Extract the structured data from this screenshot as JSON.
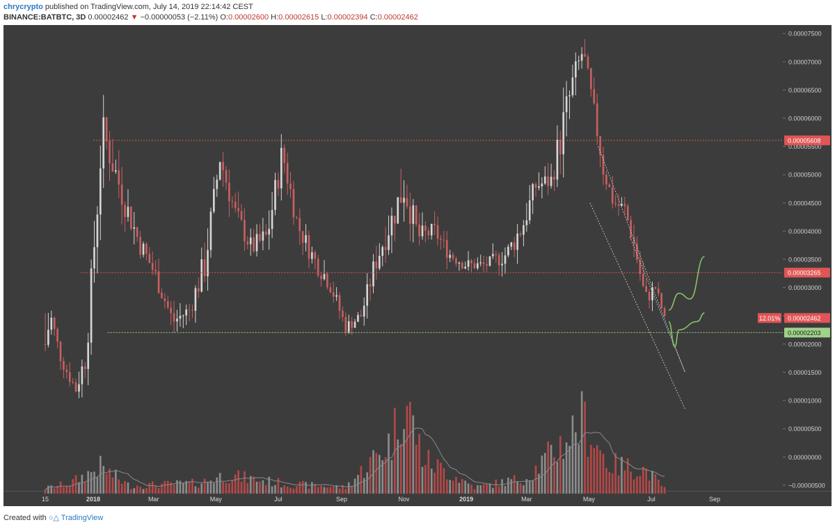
{
  "header": {
    "author": "chrycrypto",
    "published_text": "published on TradingView.com, July 14, 2019 22:14:42 CEST",
    "symbol": "BINANCE:BATBTC, 3D",
    "last": "0.00002462",
    "arrow": "▼",
    "change": "−0.00000053 (−2.11%)",
    "o_label": "O:",
    "o_value": "0.00002600",
    "h_label": "H:",
    "h_value": "0.00002615",
    "l_label": "L:",
    "l_value": "0.00002394",
    "c_label": "C:",
    "c_value": "0.00002462"
  },
  "footer": {
    "created_with": "Created with",
    "brand": "TradingView"
  },
  "colors": {
    "background": "#3c3c3c",
    "up": "#d6d6d6",
    "down": "#c96060",
    "resistance": "#e05555",
    "support": "#9fd389",
    "projection": "#86c468",
    "channel": "#bbbbbb",
    "volume_ma": "#8a8a8a"
  },
  "chart_data": {
    "type": "candlestick",
    "y_axis": {
      "range": [
        -6e-06,
        7.65e-05
      ],
      "tick_labels": [
        "0.00007500",
        "0.00007000",
        "0.00006500",
        "0.00006000",
        "0.00005500",
        "0.00005000",
        "0.00004500",
        "0.00004000",
        "0.00003500",
        "0.00003000",
        "0.00002500",
        "0.00002000",
        "0.00001500",
        "0.00001000",
        "0.00000500",
        "0.00000000",
        "−0.00000500"
      ],
      "tick_values": [
        7.5e-05,
        7e-05,
        6.5e-05,
        6e-05,
        5.5e-05,
        5e-05,
        4.5e-05,
        4e-05,
        3.5e-05,
        3e-05,
        2.5e-05,
        2e-05,
        1.5e-05,
        1e-05,
        5e-06,
        0,
        -5e-06
      ]
    },
    "x_axis": {
      "range": [
        "2017-11-15",
        "2019-09-20"
      ],
      "tick_labels": [
        "15",
        "2018",
        "Mar",
        "May",
        "Jul",
        "Sep",
        "Nov",
        "2019",
        "Mar",
        "May",
        "Jul",
        "Sep"
      ],
      "tick_dates": [
        "2017-11-15",
        "2018-01-01",
        "2018-03-01",
        "2018-05-01",
        "2018-07-01",
        "2018-09-01",
        "2018-11-01",
        "2019-01-01",
        "2019-03-01",
        "2019-05-01",
        "2019-07-01",
        "2019-09-01"
      ]
    },
    "price_path": [
      [
        "2017-11-15",
        2e-05,
        4e-05,
        1e-06
      ],
      [
        "2017-11-20",
        2.5e-05,
        3e-05,
        1.7e-05
      ],
      [
        "2017-12-01",
        1.7e-05,
        2e-05,
        1.4e-05
      ],
      [
        "2017-12-15",
        1.2e-05,
        1.8e-05,
        1e-05
      ],
      [
        "2017-12-25",
        1.8e-05,
        3e-05,
        1.5e-05
      ],
      [
        "2018-01-05",
        4.5e-05,
        6e-05,
        3.5e-05
      ],
      [
        "2018-01-10",
        5.8e-05,
        6.65e-05,
        4.8e-05
      ],
      [
        "2018-01-20",
        5.2e-05,
        6e-05,
        4.2e-05
      ],
      [
        "2018-02-01",
        4.5e-05,
        5.3e-05,
        3.8e-05
      ],
      [
        "2018-02-15",
        3.8e-05,
        4.5e-05,
        3.3e-05
      ],
      [
        "2018-03-01",
        3.3e-05,
        4e-05,
        2.9e-05
      ],
      [
        "2018-03-20",
        2.4e-05,
        3e-05,
        2.1e-05
      ],
      [
        "2018-04-05",
        2.6e-05,
        3.2e-05,
        2.3e-05
      ],
      [
        "2018-04-20",
        3.4e-05,
        4.8e-05,
        3e-05
      ],
      [
        "2018-05-05",
        5.3e-05,
        5.8e-05,
        4.5e-05
      ],
      [
        "2018-05-20",
        4.3e-05,
        5.1e-05,
        3.8e-05
      ],
      [
        "2018-06-05",
        3.7e-05,
        4.2e-05,
        3.2e-05
      ],
      [
        "2018-06-20",
        3.9e-05,
        4.8e-05,
        3.4e-05
      ],
      [
        "2018-07-05",
        5.4e-05,
        5.6e-05,
        4e-05
      ],
      [
        "2018-07-20",
        4.1e-05,
        4.6e-05,
        3.6e-05
      ],
      [
        "2018-08-05",
        3.5e-05,
        4.1e-05,
        3e-05
      ],
      [
        "2018-08-20",
        3.1e-05,
        3.6e-05,
        2.6e-05
      ],
      [
        "2018-09-05",
        2.3e-05,
        2.7e-05,
        2.05e-05
      ],
      [
        "2018-09-20",
        2.5e-05,
        2.9e-05,
        2.2e-05
      ],
      [
        "2018-10-05",
        3.5e-05,
        4.4e-05,
        3e-05
      ],
      [
        "2018-10-20",
        4.2e-05,
        5.3e-05,
        3.8e-05
      ],
      [
        "2018-11-01",
        4.8e-05,
        6e-05,
        3.8e-05
      ],
      [
        "2018-11-15",
        3.9e-05,
        4.4e-05,
        3.3e-05
      ],
      [
        "2018-12-01",
        4e-05,
        4.4e-05,
        3.5e-05
      ],
      [
        "2018-12-15",
        3.6e-05,
        4e-05,
        3.2e-05
      ],
      [
        "2019-01-01",
        3.4e-05,
        3.8e-05,
        3.1e-05
      ],
      [
        "2019-01-20",
        3.4e-05,
        3.7e-05,
        3.1e-05
      ],
      [
        "2019-02-10",
        3.6e-05,
        4e-05,
        2.9e-05
      ],
      [
        "2019-02-25",
        4.1e-05,
        4.7e-05,
        3.3e-05
      ],
      [
        "2019-03-10",
        4.8e-05,
        5.3e-05,
        4.2e-05
      ],
      [
        "2019-03-25",
        4.9e-05,
        5.6e-05,
        4.6e-05
      ],
      [
        "2019-04-05",
        5.8e-05,
        7.65e-05,
        5.2e-05
      ],
      [
        "2019-04-15",
        6.6e-05,
        7.2e-05,
        5.5e-05
      ],
      [
        "2019-04-25",
        7.2e-05,
        7.65e-05,
        6.5e-05
      ],
      [
        "2019-05-05",
        6.2e-05,
        6.6e-05,
        5.5e-05
      ],
      [
        "2019-05-15",
        5.1e-05,
        5.6e-05,
        4.5e-05
      ],
      [
        "2019-05-25",
        4.5e-05,
        4.8e-05,
        4e-05
      ],
      [
        "2019-06-05",
        4.4e-05,
        4.7e-05,
        4e-05
      ],
      [
        "2019-06-15",
        3.7e-05,
        4.1e-05,
        3.1e-05
      ],
      [
        "2019-06-25",
        2.8e-05,
        3.1e-05,
        2.2e-05
      ],
      [
        "2019-07-05",
        3e-05,
        3.35e-05,
        2.6e-05
      ],
      [
        "2019-07-14",
        2.462e-05,
        2.615e-05,
        2.394e-05
      ]
    ],
    "volume_path": [
      [
        "2017-11-15",
        1e-06
      ],
      [
        "2017-12-10",
        2e-06
      ],
      [
        "2018-01-08",
        5e-06
      ],
      [
        "2018-02-05",
        1.5e-06
      ],
      [
        "2018-04-15",
        2e-06
      ],
      [
        "2018-05-10",
        3.5e-06
      ],
      [
        "2018-07-10",
        1.8e-06
      ],
      [
        "2018-09-05",
        1.2e-06
      ],
      [
        "2018-10-20",
        1e-05
      ],
      [
        "2018-11-01",
        1.85e-05
      ],
      [
        "2018-11-20",
        6.5e-06
      ],
      [
        "2019-01-10",
        1.2e-06
      ],
      [
        "2019-03-01",
        3e-06
      ],
      [
        "2019-04-05",
        9.5e-06
      ],
      [
        "2019-04-25",
        1.4e-05
      ],
      [
        "2019-05-20",
        5.5e-06
      ],
      [
        "2019-06-25",
        4.5e-06
      ],
      [
        "2019-07-14",
        1e-06
      ]
    ],
    "volume_base": -6.5e-06,
    "volume_peak_value": 2.05e-05,
    "horizontal_levels": [
      {
        "label": "0.00005608",
        "value": 5.608e-05,
        "from": "2018-01-01",
        "color": "#e05555"
      },
      {
        "label": "0.00003265",
        "value": 3.265e-05,
        "from": "2017-12-20",
        "color": "#e05555"
      },
      {
        "label": "0.00002203",
        "value": 2.203e-05,
        "from": "2018-01-15",
        "color": "#9fd389"
      }
    ],
    "last_price": {
      "label": "0.00002462",
      "value": 2.462e-05,
      "percent": "12.01%"
    },
    "channel_lines": [
      [
        [
          "2019-05-02",
          4.5e-05
        ],
        [
          "2019-08-03",
          8.5e-06
        ]
      ],
      [
        [
          "2019-05-10",
          5.5e-05
        ],
        [
          "2019-08-03",
          1.5e-05
        ]
      ],
      [
        [
          "2019-06-10",
          3.9e-05
        ],
        [
          "2019-08-03",
          1.5e-05
        ]
      ]
    ],
    "projections": [
      [
        [
          "2019-07-18",
          2.6e-05
        ],
        [
          "2019-07-28",
          2.9e-05
        ],
        [
          "2019-08-08",
          2.8e-05
        ],
        [
          "2019-08-22",
          3.55e-05
        ]
      ],
      [
        [
          "2019-07-18",
          2.4e-05
        ],
        [
          "2019-07-24",
          1.95e-05
        ],
        [
          "2019-07-28",
          2.25e-05
        ],
        [
          "2019-08-15",
          2.4e-05
        ],
        [
          "2019-08-22",
          2.55e-05
        ]
      ]
    ]
  }
}
